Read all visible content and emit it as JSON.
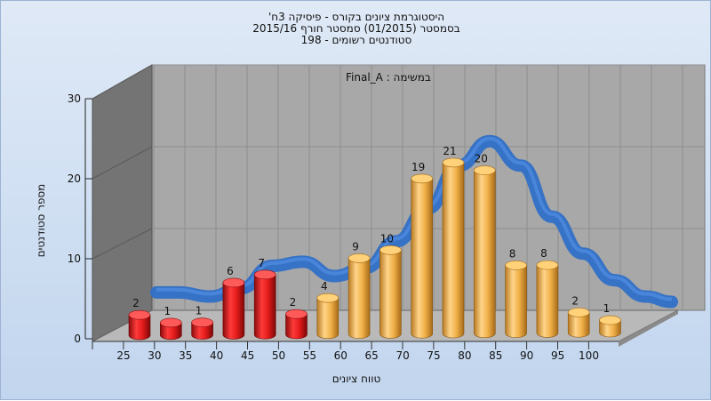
{
  "title_lines": [
    "היסטוגרמת ציונים בקורס - פיסיקה 3ח'",
    "בסמסטר  (01/2015)  סמסטר חורף 2015/16",
    "סטודנטים רשומים - 198"
  ],
  "chart_data": {
    "type": "bar",
    "title": "היסטוגרמת ציונים בקורס - פיסיקה 3ח'",
    "subtitle": "בסמסטר  (01/2015)  סמסטר חורף 2015/16 / סטודנטים רשומים - 198",
    "inner_label": "במשימה : Final_A",
    "xlabel": "טווח ציונים",
    "ylabel": "מספר סטודנטים",
    "ylim": [
      0,
      30
    ],
    "yticks": [
      0,
      10,
      20,
      30
    ],
    "categories": [
      "25",
      "30",
      "35",
      "40",
      "45",
      "50",
      "55",
      "60",
      "65",
      "70",
      "75",
      "80",
      "85",
      "90",
      "95",
      "100"
    ],
    "values": [
      2,
      1,
      1,
      6,
      7,
      2,
      4,
      9,
      10,
      19,
      21,
      20,
      8,
      8,
      2,
      1
    ],
    "colors": {
      "fail": "#e0191b",
      "pass": "#f0b040",
      "curve": "#2f6fc6"
    },
    "fail_below": 55,
    "grid": true
  }
}
